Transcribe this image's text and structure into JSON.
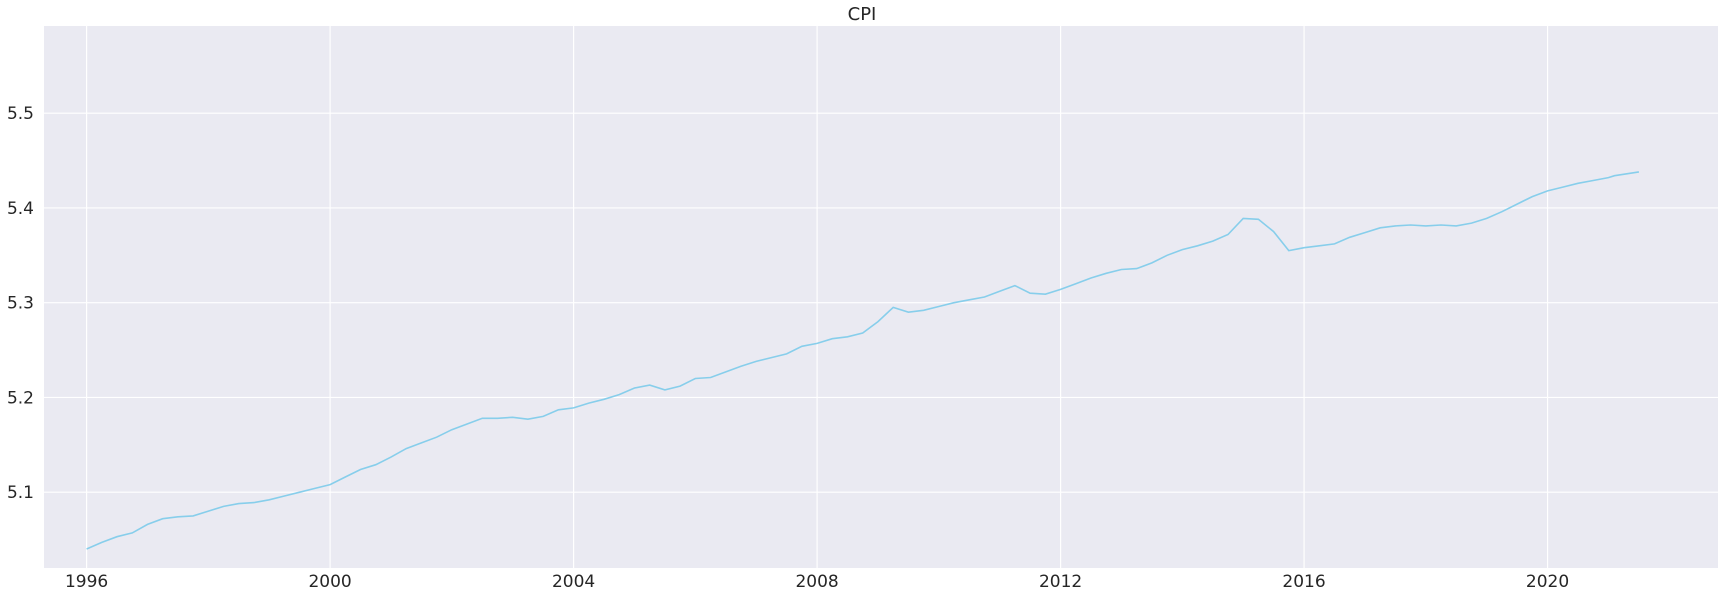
{
  "chart_data": {
    "type": "line",
    "title": "CPI",
    "xlabel": "",
    "ylabel": "",
    "xlim": [
      1995.3,
      2022.8
    ],
    "ylim": [
      5.02,
      5.592
    ],
    "x_ticks": [
      "1996",
      "2000",
      "2004",
      "2008",
      "2012",
      "2016",
      "2020"
    ],
    "y_ticks": [
      "5.1",
      "5.2",
      "5.3",
      "5.4",
      "5.5"
    ],
    "grid": true,
    "legend": "none",
    "series": [
      {
        "color": "#87ceeb",
        "marker": "none",
        "points": [
          [
            1996.0,
            5.04
          ],
          [
            1996.25,
            5.047
          ],
          [
            1996.5,
            5.053
          ],
          [
            1996.75,
            5.057
          ],
          [
            1997.0,
            5.066
          ],
          [
            1997.25,
            5.072
          ],
          [
            1997.5,
            5.074
          ],
          [
            1997.75,
            5.075
          ],
          [
            1998.0,
            5.08
          ],
          [
            1998.25,
            5.085
          ],
          [
            1998.5,
            5.088
          ],
          [
            1998.75,
            5.089
          ],
          [
            1999.0,
            5.092
          ],
          [
            1999.25,
            5.096
          ],
          [
            1999.5,
            5.1
          ],
          [
            1999.75,
            5.104
          ],
          [
            2000.0,
            5.108
          ],
          [
            2000.25,
            5.116
          ],
          [
            2000.5,
            5.124
          ],
          [
            2000.75,
            5.129
          ],
          [
            2001.0,
            5.137
          ],
          [
            2001.25,
            5.146
          ],
          [
            2001.5,
            5.152
          ],
          [
            2001.75,
            5.158
          ],
          [
            2002.0,
            5.166
          ],
          [
            2002.25,
            5.172
          ],
          [
            2002.5,
            5.178
          ],
          [
            2002.75,
            5.178
          ],
          [
            2003.0,
            5.179
          ],
          [
            2003.25,
            5.177
          ],
          [
            2003.5,
            5.18
          ],
          [
            2003.75,
            5.187
          ],
          [
            2004.0,
            5.189
          ],
          [
            2004.25,
            5.194
          ],
          [
            2004.5,
            5.198
          ],
          [
            2004.75,
            5.203
          ],
          [
            2005.0,
            5.21
          ],
          [
            2005.25,
            5.213
          ],
          [
            2005.5,
            5.208
          ],
          [
            2005.75,
            5.212
          ],
          [
            2006.0,
            5.22
          ],
          [
            2006.25,
            5.221
          ],
          [
            2006.5,
            5.227
          ],
          [
            2006.75,
            5.233
          ],
          [
            2007.0,
            5.238
          ],
          [
            2007.25,
            5.242
          ],
          [
            2007.5,
            5.246
          ],
          [
            2007.75,
            5.254
          ],
          [
            2008.0,
            5.257
          ],
          [
            2008.25,
            5.262
          ],
          [
            2008.5,
            5.264
          ],
          [
            2008.75,
            5.268
          ],
          [
            2009.0,
            5.28
          ],
          [
            2009.25,
            5.295
          ],
          [
            2009.5,
            5.29
          ],
          [
            2009.75,
            5.292
          ],
          [
            2010.0,
            5.296
          ],
          [
            2010.25,
            5.3
          ],
          [
            2010.5,
            5.303
          ],
          [
            2010.75,
            5.306
          ],
          [
            2011.0,
            5.312
          ],
          [
            2011.25,
            5.318
          ],
          [
            2011.5,
            5.31
          ],
          [
            2011.75,
            5.309
          ],
          [
            2012.0,
            5.314
          ],
          [
            2012.25,
            5.32
          ],
          [
            2012.5,
            5.326
          ],
          [
            2012.75,
            5.331
          ],
          [
            2013.0,
            5.335
          ],
          [
            2013.25,
            5.336
          ],
          [
            2013.5,
            5.342
          ],
          [
            2013.75,
            5.35
          ],
          [
            2014.0,
            5.356
          ],
          [
            2014.25,
            5.36
          ],
          [
            2014.5,
            5.365
          ],
          [
            2014.75,
            5.372
          ],
          [
            2015.0,
            5.389
          ],
          [
            2015.25,
            5.388
          ],
          [
            2015.5,
            5.375
          ],
          [
            2015.75,
            5.355
          ],
          [
            2016.0,
            5.358
          ],
          [
            2016.25,
            5.36
          ],
          [
            2016.5,
            5.362
          ],
          [
            2016.75,
            5.369
          ],
          [
            2017.0,
            5.374
          ],
          [
            2017.25,
            5.379
          ],
          [
            2017.5,
            5.381
          ],
          [
            2017.75,
            5.382
          ],
          [
            2018.0,
            5.381
          ],
          [
            2018.25,
            5.382
          ],
          [
            2018.5,
            5.381
          ],
          [
            2018.75,
            5.384
          ],
          [
            2019.0,
            5.389
          ],
          [
            2019.25,
            5.396
          ],
          [
            2019.5,
            5.404
          ],
          [
            2019.75,
            5.412
          ],
          [
            2020.0,
            5.418
          ],
          [
            2020.25,
            5.422
          ],
          [
            2020.5,
            5.426
          ],
          [
            2020.75,
            5.429
          ],
          [
            2021.0,
            5.432
          ],
          [
            2021.1,
            5.434
          ],
          [
            2021.3,
            5.436
          ],
          [
            2021.5,
            5.438
          ]
        ]
      }
    ]
  }
}
